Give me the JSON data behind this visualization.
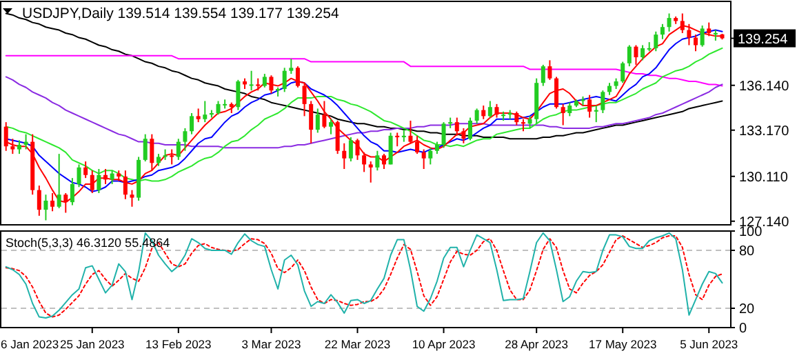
{
  "chart_data": [
    {
      "type": "candlestick",
      "title": "USDJPY,Daily 139.514 139.554 139.177 139.254",
      "tick_labels": "y",
      "colors": [
        "#ff0000",
        "#ff0000",
        "#22cc22",
        "#22cc22",
        "#ff0000",
        "#ff0000",
        "#22cc22",
        "#ff0000",
        "#22cc22",
        "#ff0000",
        "#22cc22",
        "#22cc22",
        "#ff0000",
        "#ff0000",
        "#22cc22",
        "#ff0000",
        "#22cc22",
        "#ff0000",
        "#ff0000",
        "#ff0000",
        "#22cc22",
        "#22cc22",
        "#ff0000",
        "#22cc22",
        "#22cc22",
        "#ff0000",
        "#22cc22",
        "#22cc22",
        "#22cc22",
        "#ff0000",
        "#22cc22",
        "#22cc22",
        "#22cc22",
        "#22cc22",
        "#ff0000",
        "#22cc22",
        "#ff0000",
        "#22cc22",
        "#ff0000",
        "#22cc22",
        "#ff0000",
        "#22cc22",
        "#22cc22",
        "#22cc22",
        "#ff0000",
        "#ff0000",
        "#ff0000",
        "#22cc22",
        "#ff0000",
        "#22cc22",
        "#ff0000",
        "#ff0000",
        "#22cc22",
        "#ff0000",
        "#ff0000",
        "#ff0000",
        "#22cc22",
        "#ff0000",
        "#22cc22",
        "#ff0000",
        "#22cc22",
        "#ff0000",
        "#ff0000",
        "#ff0000",
        "#22cc22",
        "#22cc22",
        "#22cc22",
        "#22cc22",
        "#ff0000",
        "#ff0000",
        "#22cc22",
        "#22cc22",
        "#ff0000",
        "#22cc22",
        "#ff0000",
        "#22cc22",
        "#22cc22",
        "#ff0000",
        "#ff0000",
        "#22cc22",
        "#22cc22",
        "#22cc22",
        "#ff0000",
        "#ff0000",
        "#ff0000",
        "#22cc22",
        "#22cc22",
        "#22cc22",
        "#ff0000",
        "#22cc22",
        "#22cc22",
        "#22cc22",
        "#22cc22",
        "#22cc22",
        "#22cc22",
        "#ff0000",
        "#22cc22",
        "#22cc22",
        "#22cc22",
        "#22cc22",
        "#22cc22",
        "#ff0000",
        "#ff0000",
        "#ff0000",
        "#ff0000",
        "#22cc22",
        "#ff0000",
        "#22cc22",
        "#ff0000"
      ],
      "categories": [
        null,
        null,
        null,
        null,
        null,
        null,
        null,
        null,
        null,
        null,
        null,
        null,
        null,
        null,
        null,
        null,
        null,
        null,
        null,
        null,
        null,
        null,
        null,
        null,
        null,
        null,
        null,
        null,
        null,
        null,
        null,
        null,
        null,
        null,
        null,
        null,
        null,
        null,
        null,
        null,
        null,
        null,
        null,
        null,
        null,
        null,
        null,
        null,
        null,
        null,
        null,
        null,
        null,
        null,
        null,
        null,
        null,
        null,
        null,
        null,
        null,
        null,
        null,
        null,
        null,
        null,
        null,
        null,
        null,
        null,
        null,
        null,
        null,
        null,
        null,
        null,
        null,
        null,
        null,
        null,
        null,
        null,
        null,
        null,
        null,
        null,
        null,
        null,
        null,
        null,
        null,
        null,
        null,
        null,
        null,
        null,
        null,
        null,
        null,
        null,
        null,
        null,
        null,
        null,
        null,
        null,
        null,
        null,
        null
      ],
      "ohlc": [
        [
          133.4,
          133.7,
          131.8,
          132.1
        ],
        [
          132.1,
          132.6,
          131.6,
          131.9
        ],
        [
          131.9,
          132.5,
          131.6,
          132.2
        ],
        [
          132.2,
          132.9,
          131.9,
          132.4
        ],
        [
          132.4,
          132.9,
          128.9,
          129.2
        ],
        [
          129.2,
          129.5,
          127.5,
          127.9
        ],
        [
          127.9,
          128.9,
          127.2,
          128.5
        ],
        [
          128.5,
          129.0,
          127.8,
          128.1
        ],
        [
          128.1,
          131.6,
          128.0,
          128.9
        ],
        [
          128.9,
          129.0,
          127.7,
          128.4
        ],
        [
          128.4,
          130.0,
          128.2,
          129.6
        ],
        [
          129.6,
          130.9,
          129.4,
          130.7
        ],
        [
          130.7,
          131.1,
          130.0,
          130.2
        ],
        [
          130.2,
          130.5,
          129.0,
          129.2
        ],
        [
          129.2,
          130.6,
          129.0,
          130.2
        ],
        [
          130.2,
          130.6,
          129.6,
          129.9
        ],
        [
          129.9,
          130.5,
          129.6,
          130.3
        ],
        [
          130.3,
          130.5,
          129.8,
          130.1
        ],
        [
          130.1,
          130.5,
          128.6,
          128.9
        ],
        [
          128.9,
          129.2,
          128.1,
          128.7
        ],
        [
          128.7,
          131.4,
          128.5,
          131.2
        ],
        [
          131.2,
          132.9,
          131.1,
          132.6
        ],
        [
          132.6,
          132.9,
          130.5,
          131.0
        ],
        [
          131.0,
          131.6,
          130.8,
          131.4
        ],
        [
          131.4,
          131.9,
          131.2,
          131.5
        ],
        [
          131.5,
          131.9,
          130.9,
          131.4
        ],
        [
          131.4,
          132.6,
          131.2,
          132.4
        ],
        [
          132.4,
          133.3,
          131.8,
          133.1
        ],
        [
          133.1,
          134.3,
          132.9,
          134.1
        ],
        [
          134.1,
          134.6,
          133.7,
          133.9
        ],
        [
          133.9,
          135.1,
          133.7,
          134.2
        ],
        [
          134.2,
          134.5,
          134.0,
          134.3
        ],
        [
          134.3,
          135.1,
          134.2,
          134.9
        ],
        [
          134.9,
          135.2,
          134.6,
          134.9
        ],
        [
          134.9,
          135.0,
          134.3,
          134.7
        ],
        [
          134.7,
          136.5,
          134.5,
          136.4
        ],
        [
          136.4,
          136.6,
          135.9,
          136.2
        ],
        [
          136.2,
          137.1,
          135.8,
          136.2
        ],
        [
          136.2,
          136.6,
          135.8,
          136.1
        ],
        [
          136.1,
          136.9,
          136.0,
          136.7
        ],
        [
          136.7,
          136.8,
          135.6,
          135.8
        ],
        [
          135.8,
          136.0,
          135.4,
          135.9
        ],
        [
          135.9,
          137.3,
          135.7,
          137.1
        ],
        [
          137.1,
          137.9,
          136.9,
          137.3
        ],
        [
          137.3,
          137.4,
          136.0,
          136.1
        ],
        [
          136.1,
          136.3,
          134.1,
          134.9
        ],
        [
          134.9,
          135.1,
          132.3,
          133.2
        ],
        [
          133.2,
          134.6,
          133.0,
          134.2
        ],
        [
          134.2,
          135.1,
          133.3,
          133.4
        ],
        [
          133.4,
          133.9,
          132.9,
          133.7
        ],
        [
          133.7,
          133.8,
          131.6,
          131.8
        ],
        [
          131.8,
          132.3,
          130.6,
          131.3
        ],
        [
          131.3,
          132.7,
          131.1,
          132.5
        ],
        [
          132.5,
          132.6,
          131.2,
          131.5
        ],
        [
          131.5,
          131.7,
          130.4,
          130.9
        ],
        [
          130.9,
          131.1,
          129.7,
          130.7
        ],
        [
          130.7,
          131.8,
          130.5,
          131.5
        ],
        [
          131.5,
          131.6,
          130.6,
          130.9
        ],
        [
          130.9,
          133.0,
          130.9,
          132.8
        ],
        [
          132.8,
          133.0,
          132.1,
          132.7
        ],
        [
          132.7,
          133.2,
          132.4,
          132.8
        ],
        [
          132.8,
          133.8,
          132.3,
          132.4
        ],
        [
          132.4,
          132.8,
          131.6,
          131.7
        ],
        [
          131.7,
          131.9,
          130.6,
          131.3
        ],
        [
          131.3,
          132.0,
          130.9,
          131.8
        ],
        [
          131.8,
          132.4,
          131.6,
          132.2
        ],
        [
          132.2,
          133.7,
          132.0,
          133.6
        ],
        [
          133.6,
          134.0,
          133.3,
          133.7
        ],
        [
          133.7,
          134.0,
          132.8,
          133.1
        ],
        [
          133.1,
          133.3,
          132.3,
          132.6
        ],
        [
          132.6,
          134.0,
          132.5,
          133.8
        ],
        [
          133.8,
          134.6,
          133.6,
          134.5
        ],
        [
          134.5,
          134.8,
          133.9,
          134.1
        ],
        [
          134.1,
          135.1,
          134.0,
          134.7
        ],
        [
          134.7,
          134.9,
          134.0,
          134.2
        ],
        [
          134.2,
          134.4,
          133.8,
          134.2
        ],
        [
          134.2,
          134.5,
          133.9,
          134.3
        ],
        [
          134.3,
          134.4,
          133.5,
          133.7
        ],
        [
          133.7,
          133.9,
          133.1,
          133.6
        ],
        [
          133.6,
          134.1,
          133.3,
          133.9
        ],
        [
          133.9,
          136.6,
          133.6,
          136.3
        ],
        [
          136.3,
          137.5,
          136.1,
          137.4
        ],
        [
          137.4,
          137.8,
          136.5,
          136.6
        ],
        [
          136.6,
          136.7,
          134.6,
          134.7
        ],
        [
          134.7,
          134.9,
          133.5,
          134.3
        ],
        [
          134.3,
          135.0,
          134.1,
          134.8
        ],
        [
          134.8,
          135.2,
          134.7,
          135.1
        ],
        [
          135.1,
          135.4,
          134.8,
          135.2
        ],
        [
          135.2,
          135.5,
          134.0,
          134.4
        ],
        [
          134.4,
          134.8,
          133.7,
          134.5
        ],
        [
          134.5,
          135.8,
          134.3,
          135.7
        ],
        [
          135.7,
          136.3,
          135.5,
          136.1
        ],
        [
          136.1,
          136.6,
          135.9,
          136.4
        ],
        [
          136.4,
          137.7,
          136.3,
          137.6
        ],
        [
          137.6,
          138.8,
          137.4,
          138.7
        ],
        [
          138.7,
          138.8,
          137.5,
          138.0
        ],
        [
          138.0,
          138.8,
          137.8,
          138.6
        ],
        [
          138.6,
          139.0,
          138.4,
          138.6
        ],
        [
          138.6,
          139.7,
          138.4,
          139.5
        ],
        [
          139.5,
          140.2,
          139.2,
          140.0
        ],
        [
          140.0,
          140.9,
          139.7,
          140.6
        ],
        [
          140.6,
          140.7,
          140.2,
          140.4
        ],
        [
          140.4,
          140.9,
          139.6,
          139.8
        ],
        [
          139.8,
          140.2,
          138.8,
          139.3
        ],
        [
          139.3,
          139.5,
          138.4,
          138.8
        ],
        [
          138.8,
          140.1,
          138.7,
          139.9
        ],
        [
          139.9,
          140.3,
          139.4,
          139.6
        ],
        [
          139.6,
          139.8,
          139.1,
          139.6
        ],
        [
          139.514,
          139.554,
          139.177,
          139.254
        ]
      ],
      "series": [
        {
          "type": "line",
          "color": "#000000",
          "values": [
            140.9,
            140.8,
            140.6,
            140.5,
            140.3,
            140.2,
            140.0,
            139.9,
            139.8,
            139.6,
            139.5,
            139.3,
            139.2,
            139.0,
            138.8,
            138.7,
            138.5,
            138.4,
            138.2,
            138.1,
            137.9,
            137.7,
            137.6,
            137.4,
            137.3,
            137.1,
            137.0,
            136.8,
            136.6,
            136.5,
            136.3,
            136.2,
            136.1,
            135.9,
            135.8,
            135.7,
            135.6,
            135.4,
            135.3,
            135.2,
            135.0,
            134.9,
            134.8,
            134.7,
            134.6,
            134.5,
            134.4,
            134.3,
            134.2,
            134.1,
            133.9,
            133.8,
            133.7,
            133.6,
            133.6,
            133.5,
            133.4,
            133.4,
            133.3,
            133.3,
            133.2,
            133.2,
            133.1,
            133.1,
            133.0,
            133.0,
            132.9,
            132.9,
            132.9,
            132.8,
            132.8,
            132.8,
            132.7,
            132.7,
            132.7,
            132.7,
            132.6,
            132.6,
            132.6,
            132.6,
            132.6,
            132.7,
            132.7,
            132.8,
            132.8,
            132.9,
            133.0,
            133.0,
            133.1,
            133.2,
            133.3,
            133.4,
            133.5,
            133.5,
            133.6,
            133.7,
            133.8,
            133.9,
            134.0,
            134.1,
            134.2,
            134.3,
            134.4,
            134.6,
            134.7,
            134.8,
            134.9,
            135.0,
            135.1
          ]
        },
        {
          "type": "line",
          "color": "#ff00ff",
          "values": [
            138.1,
            138.1,
            138.1,
            138.1,
            138.1,
            138.1,
            138.1,
            138.1,
            138.1,
            138.1,
            138.1,
            138.1,
            138.1,
            138.1,
            138.1,
            138.1,
            138.1,
            138.1,
            138.1,
            138.1,
            138.1,
            138.1,
            138.1,
            138.1,
            138.1,
            138.1,
            137.9,
            137.9,
            137.9,
            137.9,
            137.9,
            137.9,
            137.9,
            137.9,
            137.9,
            137.9,
            137.9,
            137.9,
            137.9,
            137.9,
            137.9,
            137.9,
            137.9,
            137.9,
            137.9,
            137.9,
            137.7,
            137.7,
            137.7,
            137.7,
            137.7,
            137.7,
            137.7,
            137.7,
            137.7,
            137.7,
            137.7,
            137.7,
            137.7,
            137.7,
            137.7,
            137.4,
            137.4,
            137.4,
            137.4,
            137.4,
            137.4,
            137.4,
            137.4,
            137.4,
            137.4,
            137.4,
            137.4,
            137.4,
            137.4,
            137.4,
            137.4,
            137.4,
            137.4,
            137.2,
            137.2,
            137.2,
            137.2,
            137.2,
            137.2,
            137.2,
            137.2,
            137.2,
            137.2,
            137.2,
            137.2,
            137.2,
            137.2,
            137.1,
            137.0,
            136.9,
            136.9,
            136.8,
            136.8,
            136.7,
            136.6,
            136.6,
            136.5,
            136.4,
            136.4,
            136.3,
            136.2,
            136.2,
            136.1
          ]
        },
        {
          "type": "line",
          "color": "#8a2be2",
          "values": [
            136.7,
            136.5,
            136.2,
            136.0,
            135.7,
            135.5,
            135.3,
            135.0,
            134.8,
            134.5,
            134.3,
            134.1,
            133.9,
            133.7,
            133.5,
            133.3,
            133.1,
            132.9,
            132.8,
            132.6,
            132.4,
            132.4,
            132.3,
            132.3,
            132.2,
            132.2,
            132.2,
            132.2,
            132.1,
            132.1,
            132.1,
            132.1,
            132.1,
            132.0,
            132.0,
            132.0,
            132.0,
            132.0,
            132.0,
            132.0,
            132.0,
            132.0,
            132.1,
            132.1,
            132.2,
            132.2,
            132.3,
            132.4,
            132.5,
            132.6,
            132.7,
            132.8,
            132.9,
            133.0,
            133.0,
            133.1,
            133.1,
            133.2,
            133.2,
            133.3,
            133.3,
            133.3,
            133.4,
            133.4,
            133.5,
            133.5,
            133.5,
            133.5,
            133.6,
            133.6,
            133.6,
            133.6,
            133.6,
            133.5,
            133.5,
            133.5,
            133.5,
            133.5,
            133.5,
            133.5,
            133.5,
            133.5,
            133.4,
            133.4,
            133.3,
            133.3,
            133.3,
            133.3,
            133.3,
            133.4,
            133.4,
            133.5,
            133.6,
            133.6,
            133.7,
            133.8,
            133.9,
            134.0,
            134.2,
            134.3,
            134.5,
            134.7,
            134.9,
            135.1,
            135.3,
            135.5,
            135.7,
            136.0,
            136.2
          ]
        },
        {
          "type": "line",
          "color": "#2ee82e",
          "values": [
            133.4,
            133.3,
            133.1,
            133.0,
            132.8,
            132.6,
            132.4,
            132.2,
            132.0,
            131.7,
            131.2,
            131.0,
            130.8,
            130.5,
            130.3,
            130.5,
            130.5,
            130.3,
            130.0,
            129.9,
            129.8,
            129.9,
            129.8,
            129.8,
            129.9,
            130.1,
            130.4,
            130.6,
            130.8,
            131.1,
            131.3,
            131.4,
            131.7,
            132.1,
            132.4,
            132.5,
            132.8,
            133.2,
            133.5,
            133.9,
            134.1,
            134.3,
            134.6,
            135.0,
            135.3,
            135.3,
            135.3,
            135.4,
            135.4,
            135.4,
            135.2,
            135.1,
            134.9,
            134.8,
            134.6,
            134.4,
            134.1,
            133.8,
            133.7,
            133.5,
            133.3,
            133.1,
            132.8,
            132.5,
            132.4,
            132.2,
            132.2,
            132.1,
            132.2,
            132.1,
            132.3,
            132.5,
            132.6,
            132.6,
            132.9,
            133.0,
            133.1,
            133.2,
            133.3,
            133.3,
            133.6,
            133.9,
            134.1,
            134.2,
            134.4,
            134.5,
            134.5,
            134.6,
            134.7,
            134.8,
            134.9,
            135.0,
            135.0,
            135.2,
            135.4,
            135.6,
            135.9,
            136.1,
            136.3,
            136.7,
            136.9,
            137.1,
            137.2,
            137.4,
            137.7,
            137.9,
            138.2,
            138.4,
            138.6
          ]
        },
        {
          "type": "line",
          "color": "#0000ff",
          "values": [
            132.6,
            132.5,
            132.4,
            132.3,
            132.1,
            131.5,
            131.1,
            130.7,
            130.3,
            130.0,
            129.7,
            129.6,
            129.4,
            129.1,
            129.2,
            129.4,
            129.8,
            129.8,
            129.7,
            129.8,
            129.9,
            130.1,
            130.2,
            130.5,
            130.6,
            130.7,
            130.9,
            131.3,
            131.8,
            132.3,
            132.6,
            132.7,
            133.2,
            133.7,
            134.1,
            134.3,
            134.7,
            135.0,
            135.2,
            135.5,
            135.6,
            135.8,
            136.0,
            136.3,
            136.4,
            136.3,
            135.9,
            135.7,
            135.5,
            135.2,
            134.8,
            134.3,
            133.8,
            133.3,
            132.8,
            132.4,
            132.2,
            131.8,
            131.8,
            131.7,
            131.8,
            131.9,
            131.8,
            131.7,
            131.9,
            132.0,
            132.2,
            132.4,
            132.6,
            132.5,
            132.7,
            133.0,
            133.3,
            133.5,
            133.9,
            133.9,
            133.9,
            133.9,
            134.0,
            134.1,
            134.4,
            134.7,
            134.9,
            134.9,
            134.9,
            135.0,
            135.1,
            135.2,
            135.3,
            135.4,
            135.3,
            135.2,
            135.1,
            135.5,
            135.9,
            136.2,
            136.7,
            136.9,
            137.3,
            137.9,
            138.5,
            138.9,
            139.2,
            139.3,
            139.4,
            139.6,
            139.7,
            139.8,
            139.7
          ]
        },
        {
          "type": "line",
          "color": "#ff0000",
          "values": [
            132.4,
            132.2,
            132.1,
            132.1,
            131.6,
            130.7,
            130.0,
            129.2,
            128.5,
            128.4,
            128.7,
            129.1,
            129.6,
            129.6,
            130.0,
            130.0,
            129.9,
            129.9,
            129.7,
            129.6,
            129.8,
            130.3,
            130.5,
            131.0,
            131.5,
            131.6,
            131.5,
            132.0,
            132.5,
            133.0,
            133.5,
            133.9,
            134.3,
            134.4,
            134.6,
            135.0,
            135.4,
            135.7,
            135.9,
            136.3,
            136.2,
            136.1,
            136.3,
            136.6,
            136.4,
            136.3,
            135.7,
            135.1,
            134.4,
            133.9,
            133.3,
            132.9,
            132.5,
            132.2,
            131.6,
            131.4,
            131.4,
            131.1,
            131.4,
            131.7,
            132.1,
            132.3,
            132.5,
            132.2,
            132.0,
            131.9,
            132.1,
            132.5,
            132.9,
            133.0,
            133.4,
            133.5,
            133.6,
            134.0,
            134.3,
            134.3,
            134.3,
            134.2,
            134.0,
            133.9,
            134.4,
            135.0,
            135.6,
            135.8,
            135.9,
            135.6,
            135.1,
            134.8,
            134.8,
            134.8,
            135.0,
            135.2,
            135.4,
            136.1,
            136.9,
            137.4,
            137.9,
            138.3,
            138.7,
            138.9,
            139.5,
            139.8,
            140.1,
            140.0,
            139.8,
            139.6,
            139.5,
            139.4,
            139.4
          ]
        }
      ],
      "ylim": [
        126.9,
        141.7
      ],
      "yticks": [
        {
          "value": 127.14,
          "label": "127.140"
        },
        {
          "value": 130.11,
          "label": "130.110"
        },
        {
          "value": 133.17,
          "label": "133.170"
        },
        {
          "value": 136.14,
          "label": "136.140"
        }
      ],
      "annotations": [
        "139.254"
      ]
    },
    {
      "type": "line",
      "title": "Stoch(5,3,3) 46.3120 55.4864",
      "categories": [
        null,
        null,
        null,
        null,
        null,
        null,
        null,
        null,
        null,
        null,
        null,
        null,
        null,
        "25 Jan 2023",
        null,
        null,
        null,
        null,
        null,
        null,
        null,
        null,
        null,
        null,
        null,
        null,
        "13 Feb 2023",
        null,
        null,
        null,
        null,
        null,
        null,
        null,
        null,
        null,
        null,
        null,
        null,
        null,
        "3 Mar 2023",
        null,
        null,
        null,
        null,
        null,
        null,
        null,
        null,
        null,
        null,
        null,
        null,
        "22 Mar 2023",
        null,
        null,
        null,
        null,
        null,
        null,
        null,
        null,
        null,
        null,
        null,
        null,
        "10 Apr 2023",
        null,
        null,
        null,
        null,
        null,
        null,
        null,
        null,
        null,
        null,
        null,
        null,
        null,
        "28 Apr 2023",
        null,
        null,
        null,
        null,
        null,
        null,
        null,
        null,
        null,
        null,
        null,
        null,
        "17 May 2023",
        null,
        null,
        null,
        null,
        null,
        null,
        null,
        null,
        null,
        null,
        null,
        null,
        "5 Jun 2023",
        null,
        null
      ],
      "series": [
        {
          "color": "#ff0000",
          "line_style": "dotted",
          "values": [
            62,
            61,
            59,
            53,
            42,
            27,
            15,
            11,
            13,
            19,
            26,
            33,
            45,
            55,
            59,
            50,
            43,
            49,
            56,
            51,
            48,
            62,
            82,
            88,
            77,
            66,
            63,
            66,
            77,
            85,
            87,
            83,
            81,
            80,
            79,
            81,
            87,
            92,
            91,
            87,
            77,
            61,
            57,
            62,
            70,
            59,
            42,
            29,
            25,
            29,
            28,
            25,
            23,
            24,
            27,
            27,
            31,
            40,
            55,
            72,
            86,
            81,
            58,
            33,
            23,
            32,
            50,
            68,
            79,
            76,
            75,
            80,
            89,
            92,
            80,
            59,
            39,
            29,
            29,
            39,
            59,
            81,
            92,
            83,
            59,
            40,
            36,
            46,
            54,
            58,
            65,
            78,
            91,
            95,
            91,
            87,
            83,
            85,
            88,
            93,
            95,
            95,
            83,
            55,
            34,
            29,
            44,
            53,
            55.5
          ]
        },
        {
          "color": "#20b2aa",
          "line_style": "solid",
          "values": [
            63,
            60,
            55,
            45,
            25,
            11,
            10,
            12,
            18,
            26,
            34,
            40,
            62,
            64,
            50,
            36,
            44,
            66,
            58,
            29,
            58,
            98,
            90,
            75,
            66,
            58,
            64,
            75,
            92,
            88,
            82,
            80,
            80,
            80,
            76,
            88,
            97,
            90,
            86,
            84,
            60,
            40,
            70,
            75,
            65,
            38,
            22,
            27,
            25,
            34,
            26,
            15,
            28,
            29,
            25,
            28,
            40,
            51,
            75,
            91,
            91,
            60,
            22,
            17,
            30,
            48,
            72,
            83,
            83,
            63,
            80,
            96,
            92,
            88,
            60,
            28,
            29,
            29,
            30,
            58,
            88,
            98,
            90,
            60,
            27,
            32,
            48,
            58,
            57,
            58,
            80,
            96,
            96,
            94,
            84,
            82,
            82,
            90,
            93,
            95,
            98,
            92,
            60,
            13,
            29,
            45,
            58,
            56,
            46.3
          ]
        }
      ],
      "ylim": [
        0,
        100
      ],
      "yticks": [
        0,
        20,
        80,
        100
      ],
      "annotations": [
        "6 Jan 2023"
      ],
      "ref_lines": [
        {
          "axis": "y",
          "value": 20,
          "color": "#c0c0c0",
          "line_style": "dashed"
        },
        {
          "axis": "y",
          "value": 80,
          "color": "#c0c0c0",
          "line_style": "dashed"
        }
      ]
    }
  ]
}
